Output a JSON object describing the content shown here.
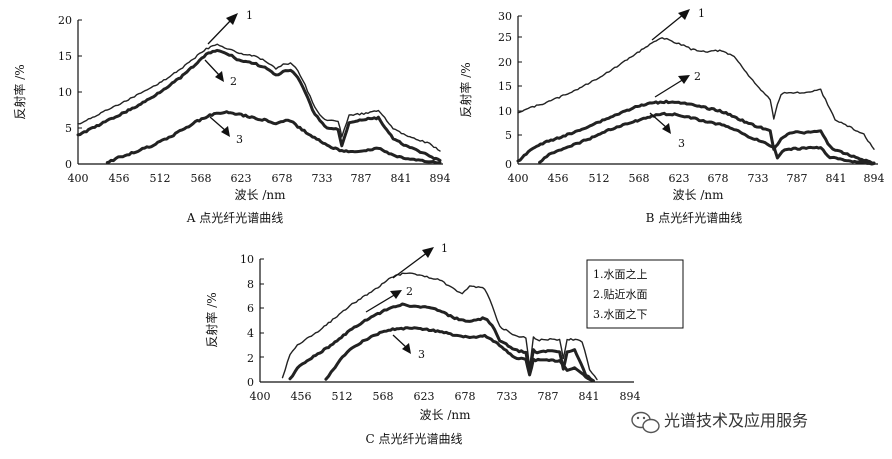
{
  "chart_data": [
    {
      "type": "line",
      "id": "A",
      "caption": "A 点光纤光谱曲线",
      "ylabel": "反射率 /%",
      "xlabel": "波长 /nm",
      "xticks": [
        "400",
        "456",
        "512",
        "568",
        "623",
        "678",
        "733",
        "787",
        "841",
        "894"
      ],
      "yticks": [
        "0",
        "5",
        "10",
        "15",
        "20"
      ],
      "xlim": [
        400,
        894
      ],
      "ylim": [
        0,
        20
      ],
      "series": [
        {
          "name": "1",
          "x": [
            400,
            420,
            440,
            460,
            480,
            500,
            520,
            540,
            560,
            575,
            590,
            600,
            610,
            620,
            640,
            655,
            670,
            680,
            690,
            700,
            710,
            720,
            730,
            740,
            755,
            760,
            770,
            790,
            810,
            830,
            850,
            870,
            880,
            894
          ],
          "y": [
            5.5,
            6.5,
            7.5,
            8.5,
            9.5,
            10.6,
            11.8,
            13.2,
            14.8,
            16.0,
            16.6,
            16.2,
            15.8,
            15.4,
            15.0,
            14.3,
            13.2,
            13.8,
            14.0,
            13.0,
            11.0,
            8.5,
            6.8,
            6.0,
            6.0,
            3.8,
            6.8,
            7.0,
            7.4,
            5.0,
            3.8,
            3.2,
            2.8,
            1.8
          ]
        },
        {
          "name": "2",
          "x": [
            400,
            420,
            440,
            460,
            480,
            500,
            520,
            540,
            560,
            575,
            590,
            600,
            610,
            620,
            640,
            655,
            670,
            680,
            690,
            700,
            710,
            720,
            730,
            740,
            755,
            760,
            770,
            790,
            810,
            830,
            850,
            870,
            880,
            894
          ],
          "y": [
            4.0,
            5.0,
            6.0,
            7.0,
            8.0,
            9.2,
            10.6,
            12.0,
            13.8,
            15.2,
            15.8,
            15.4,
            15.0,
            14.4,
            14.0,
            13.4,
            12.3,
            12.8,
            13.0,
            12.0,
            10.0,
            7.5,
            6.0,
            5.0,
            4.8,
            2.5,
            5.8,
            6.2,
            6.4,
            3.5,
            2.4,
            1.6,
            1.0,
            0.5
          ]
        },
        {
          "name": "3",
          "x": [
            440,
            445,
            455,
            470,
            500,
            530,
            560,
            580,
            600,
            620,
            640,
            660,
            670,
            680,
            690,
            700,
            720,
            740,
            760,
            790,
            810,
            830,
            850,
            870,
            894
          ],
          "y": [
            0.2,
            0.4,
            0.9,
            1.4,
            2.5,
            4.0,
            5.8,
            6.8,
            7.2,
            6.9,
            6.4,
            6.0,
            5.5,
            6.0,
            6.0,
            5.2,
            3.8,
            2.6,
            1.8,
            1.8,
            2.2,
            1.2,
            0.7,
            0.4,
            0.2
          ]
        }
      ],
      "labels": [
        "1",
        "2",
        "3"
      ]
    },
    {
      "type": "line",
      "id": "B",
      "caption": "B 点光纤光谱曲线",
      "ylabel": "反射率 /%",
      "xlabel": "波长 /nm",
      "xticks": [
        "400",
        "456",
        "512",
        "568",
        "623",
        "678",
        "733",
        "787",
        "841",
        "894"
      ],
      "yticks": [
        "0",
        "5",
        "10",
        "15",
        "20",
        "25",
        "30"
      ],
      "xlim": [
        400,
        894
      ],
      "ylim": [
        0,
        30
      ],
      "series": [
        {
          "name": "1",
          "x": [
            400,
            420,
            440,
            460,
            480,
            500,
            520,
            540,
            560,
            580,
            600,
            610,
            620,
            630,
            640,
            660,
            680,
            700,
            720,
            740,
            750,
            755,
            760,
            765,
            770,
            800,
            820,
            830,
            840,
            860,
            880,
            894
          ],
          "y": [
            10.5,
            11.5,
            12.5,
            13.7,
            15.0,
            16.5,
            18.2,
            20.0,
            22.0,
            24.0,
            25.5,
            25.2,
            24.5,
            24.0,
            23.3,
            22.8,
            23.0,
            21.8,
            18.0,
            14.5,
            13.0,
            9.0,
            12.0,
            14.0,
            14.5,
            14.5,
            15.0,
            12.0,
            9.0,
            7.5,
            6.0,
            3.0
          ]
        },
        {
          "name": "2",
          "x": [
            400,
            420,
            440,
            460,
            480,
            500,
            520,
            540,
            560,
            580,
            600,
            620,
            640,
            660,
            680,
            700,
            720,
            740,
            750,
            755,
            760,
            765,
            780,
            800,
            820,
            830,
            840,
            860,
            880,
            894
          ],
          "y": [
            0.5,
            3.2,
            4.5,
            5.5,
            6.5,
            7.8,
            9.0,
            10.2,
            11.4,
            12.2,
            12.6,
            12.6,
            12.0,
            11.4,
            10.8,
            9.6,
            8.2,
            7.2,
            6.6,
            3.0,
            4.0,
            5.2,
            6.4,
            6.4,
            6.8,
            4.0,
            2.8,
            1.8,
            0.8,
            0.2
          ]
        },
        {
          "name": "3",
          "x": [
            430,
            440,
            450,
            460,
            480,
            500,
            520,
            540,
            560,
            580,
            600,
            620,
            640,
            660,
            680,
            700,
            720,
            740,
            755,
            760,
            770,
            800,
            820,
            830,
            850,
            870,
            894
          ],
          "y": [
            0.3,
            1.6,
            2.4,
            3.0,
            4.0,
            5.2,
            6.6,
            7.6,
            8.6,
            9.4,
            10.2,
            10.0,
            9.4,
            8.6,
            8.0,
            7.0,
            5.6,
            4.4,
            3.5,
            1.2,
            3.0,
            3.2,
            3.4,
            1.5,
            0.8,
            0.4,
            0.1
          ]
        }
      ],
      "labels": [
        "1",
        "2",
        "3"
      ]
    },
    {
      "type": "line",
      "id": "C",
      "caption": "C 点光纤光谱曲线",
      "ylabel": "反射率 /%",
      "xlabel": "波长 /nm",
      "xticks": [
        "400",
        "456",
        "512",
        "568",
        "623",
        "678",
        "733",
        "787",
        "841",
        "894"
      ],
      "yticks": [
        "0",
        "2",
        "4",
        "6",
        "8",
        "10"
      ],
      "xlim": [
        400,
        894
      ],
      "ylim": [
        0,
        10
      ],
      "series": [
        {
          "name": "1",
          "x": [
            430,
            440,
            450,
            460,
            480,
            500,
            520,
            540,
            560,
            575,
            590,
            600,
            610,
            620,
            640,
            660,
            670,
            680,
            700,
            710,
            720,
            740,
            755,
            760,
            765,
            770,
            790,
            800,
            805,
            810,
            815,
            830,
            840,
            850
          ],
          "y": [
            0.4,
            2.2,
            3.0,
            3.4,
            4.2,
            5.2,
            6.2,
            7.0,
            7.8,
            8.5,
            8.8,
            8.9,
            8.7,
            8.6,
            8.3,
            7.5,
            7.2,
            7.8,
            7.6,
            6.2,
            4.5,
            3.8,
            3.6,
            1.2,
            3.6,
            3.4,
            3.5,
            3.4,
            1.9,
            3.4,
            3.5,
            3.3,
            1.0,
            0.2
          ]
        },
        {
          "name": "2",
          "x": [
            440,
            450,
            460,
            480,
            500,
            520,
            540,
            560,
            575,
            590,
            600,
            620,
            640,
            660,
            680,
            700,
            710,
            720,
            740,
            755,
            760,
            765,
            770,
            790,
            800,
            805,
            810,
            820,
            835,
            845
          ],
          "y": [
            0.2,
            1.2,
            1.6,
            2.4,
            3.2,
            4.2,
            5.0,
            5.6,
            6.1,
            6.3,
            6.2,
            6.1,
            5.8,
            5.2,
            4.9,
            5.2,
            4.6,
            3.4,
            2.6,
            2.4,
            0.8,
            2.6,
            2.4,
            2.6,
            2.4,
            1.1,
            2.4,
            2.6,
            0.6,
            0.1
          ]
        },
        {
          "name": "3",
          "x": [
            488,
            495,
            500,
            510,
            520,
            540,
            560,
            580,
            600,
            620,
            640,
            660,
            680,
            700,
            720,
            740,
            755,
            760,
            765,
            780,
            800,
            810,
            820,
            835,
            845
          ],
          "y": [
            0.2,
            0.8,
            1.2,
            2.0,
            2.6,
            3.4,
            4.0,
            4.3,
            4.4,
            4.3,
            4.1,
            3.8,
            3.6,
            3.8,
            3.0,
            2.0,
            1.8,
            0.6,
            1.8,
            1.8,
            1.7,
            1.0,
            1.2,
            0.4,
            0.1
          ]
        }
      ],
      "labels": [
        "1",
        "2",
        "3"
      ],
      "legend": [
        "1.水面之上",
        "2.贴近水面",
        "3.水面之下"
      ]
    }
  ],
  "watermark": {
    "icon": "wechat-icon",
    "text": "光谱技术及应用服务"
  }
}
